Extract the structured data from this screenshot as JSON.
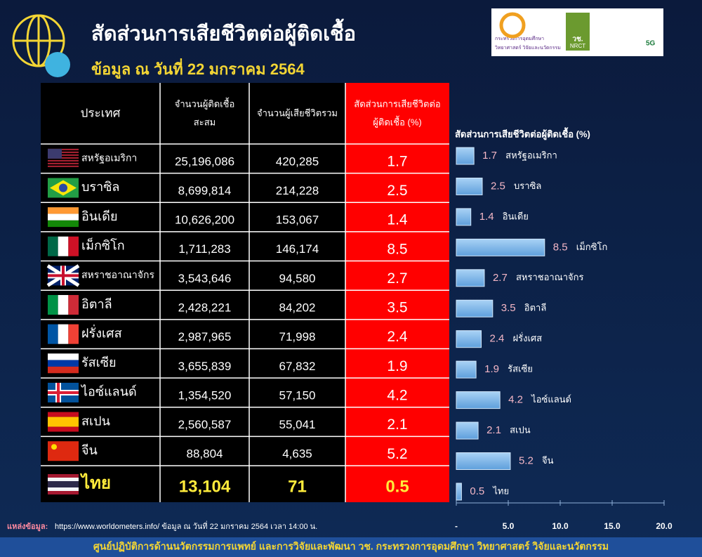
{
  "header": {
    "title": "สัดส่วนการเสียชีวิตต่อผู้ติดเชื้อ",
    "subtitle": "ข้อมูล ณ วันที่ 22 มกราคม 2564",
    "logos": [
      "กระทรวงการอุดมศึกษา",
      "วิทยาศาสตร์ วิจัยและนวัตกรรม",
      "วช.",
      "NRCT",
      "5G"
    ]
  },
  "table": {
    "columns": [
      [
        "ประเทศ"
      ],
      [
        "จำนวนผู้ติดเชื้อ",
        "สะสม"
      ],
      [
        "จำนวนผู้เสียชีวิตรวม"
      ],
      [
        "สัดส่วนการเสียชีวิตต่อ",
        "ผู้ติดเชื้อ (%)"
      ]
    ],
    "rows": [
      [
        "สหรัฐอเมริกา",
        "25,196,086",
        "420,285",
        "1.7"
      ],
      [
        "บราซิล",
        "8,699,814",
        "214,228",
        "2.5"
      ],
      [
        "อินเดีย",
        "10,626,200",
        "153,067",
        "1.4"
      ],
      [
        "เม็กซิโก",
        "1,711,283",
        "146,174",
        "8.5"
      ],
      [
        "สหราชอาณาจักร",
        "3,543,646",
        "94,580",
        "2.7"
      ],
      [
        "อิตาลี",
        "2,428,221",
        "84,202",
        "3.5"
      ],
      [
        "ฝรั่งเศส",
        "2,987,965",
        "71,998",
        "2.4"
      ],
      [
        "รัสเซีย",
        "3,655,839",
        "67,832",
        "1.9"
      ],
      [
        "ไอซ์แลนด์",
        "1,354,520",
        "57,150",
        "4.2"
      ],
      [
        "สเปน",
        "2,560,587",
        "55,041",
        "2.1"
      ],
      [
        "จีน",
        "88,804",
        "4,635",
        "5.2"
      ],
      [
        "ไทย",
        "13,104",
        "71",
        "0.5"
      ]
    ]
  },
  "chart_data": {
    "type": "bar",
    "orientation": "horizontal",
    "title": "สัดส่วนการเสียชีวิตต่อผู้ติดเชื้อ (%)",
    "color": "#7fb8ea",
    "categories": [
      "สหรัฐอเมริกา",
      "บราซิล",
      "อินเดีย",
      "เม็กซิโก",
      "สหราชอาณาจักร",
      "อิตาลี",
      "ฝรั่งเศส",
      "รัสเซีย",
      "ไอซ์แลนด์",
      "สเปน",
      "จีน",
      "ไทย"
    ],
    "values": [
      1.7,
      2.5,
      1.4,
      8.5,
      2.7,
      3.5,
      2.4,
      1.9,
      4.2,
      2.1,
      5.2,
      0.5
    ],
    "xlim": [
      0,
      20
    ],
    "xticks": [
      {
        "value": 0,
        "label": "-"
      },
      {
        "value": 5,
        "label": "5.0"
      },
      {
        "value": 10,
        "label": "10.0"
      },
      {
        "value": 15,
        "label": "15.0"
      },
      {
        "value": 20,
        "label": "20.0"
      }
    ]
  },
  "footer": {
    "source_label": "แหล่งข้อมูล:",
    "source": "https://www.worldometers.info/ ข้อมูล ณ วันที่ 22 มกราคม 2564 เวลา 14:00 น.",
    "credit": "ศูนย์ปฏิบัติการด้านนวัตกรรมการแพทย์ และการวิจัยและพัฒนา วช.   กระทรวงการอุดมศึกษา วิทยาศาสตร์ วิจัยและนวัตกรรม"
  }
}
